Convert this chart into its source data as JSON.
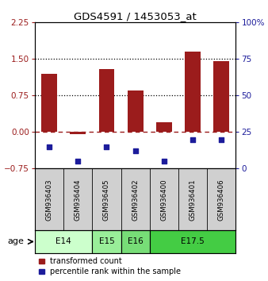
{
  "title": "GDS4591 / 1453053_at",
  "samples": [
    "GSM936403",
    "GSM936404",
    "GSM936405",
    "GSM936402",
    "GSM936400",
    "GSM936401",
    "GSM936406"
  ],
  "transformed_count": [
    1.2,
    -0.05,
    1.3,
    0.85,
    0.2,
    1.65,
    1.45
  ],
  "percentile_rank_pct": [
    15,
    5,
    15,
    12,
    5,
    20,
    20
  ],
  "bar_color": "#9B1C1C",
  "dot_color": "#1C1C9B",
  "ylim_left": [
    -0.75,
    2.25
  ],
  "ylim_right": [
    0,
    100
  ],
  "yticks_left": [
    -0.75,
    0,
    0.75,
    1.5,
    2.25
  ],
  "yticks_right": [
    0,
    25,
    50,
    75,
    100
  ],
  "hline_dashed_red": 0,
  "hline_dotted1": 0.75,
  "hline_dotted2": 1.5,
  "age_groups": [
    {
      "label": "E14",
      "start": 0,
      "end": 2,
      "color": "#ccffcc"
    },
    {
      "label": "E15",
      "start": 2,
      "end": 3,
      "color": "#99ee99"
    },
    {
      "label": "E16",
      "start": 3,
      "end": 4,
      "color": "#77dd77"
    },
    {
      "label": "E17.5",
      "start": 4,
      "end": 7,
      "color": "#44cc44"
    }
  ],
  "legend_red_label": "transformed count",
  "legend_blue_label": "percentile rank within the sample",
  "age_label": "age",
  "sample_bg_color": "#d0d0d0",
  "bar_width": 0.55
}
